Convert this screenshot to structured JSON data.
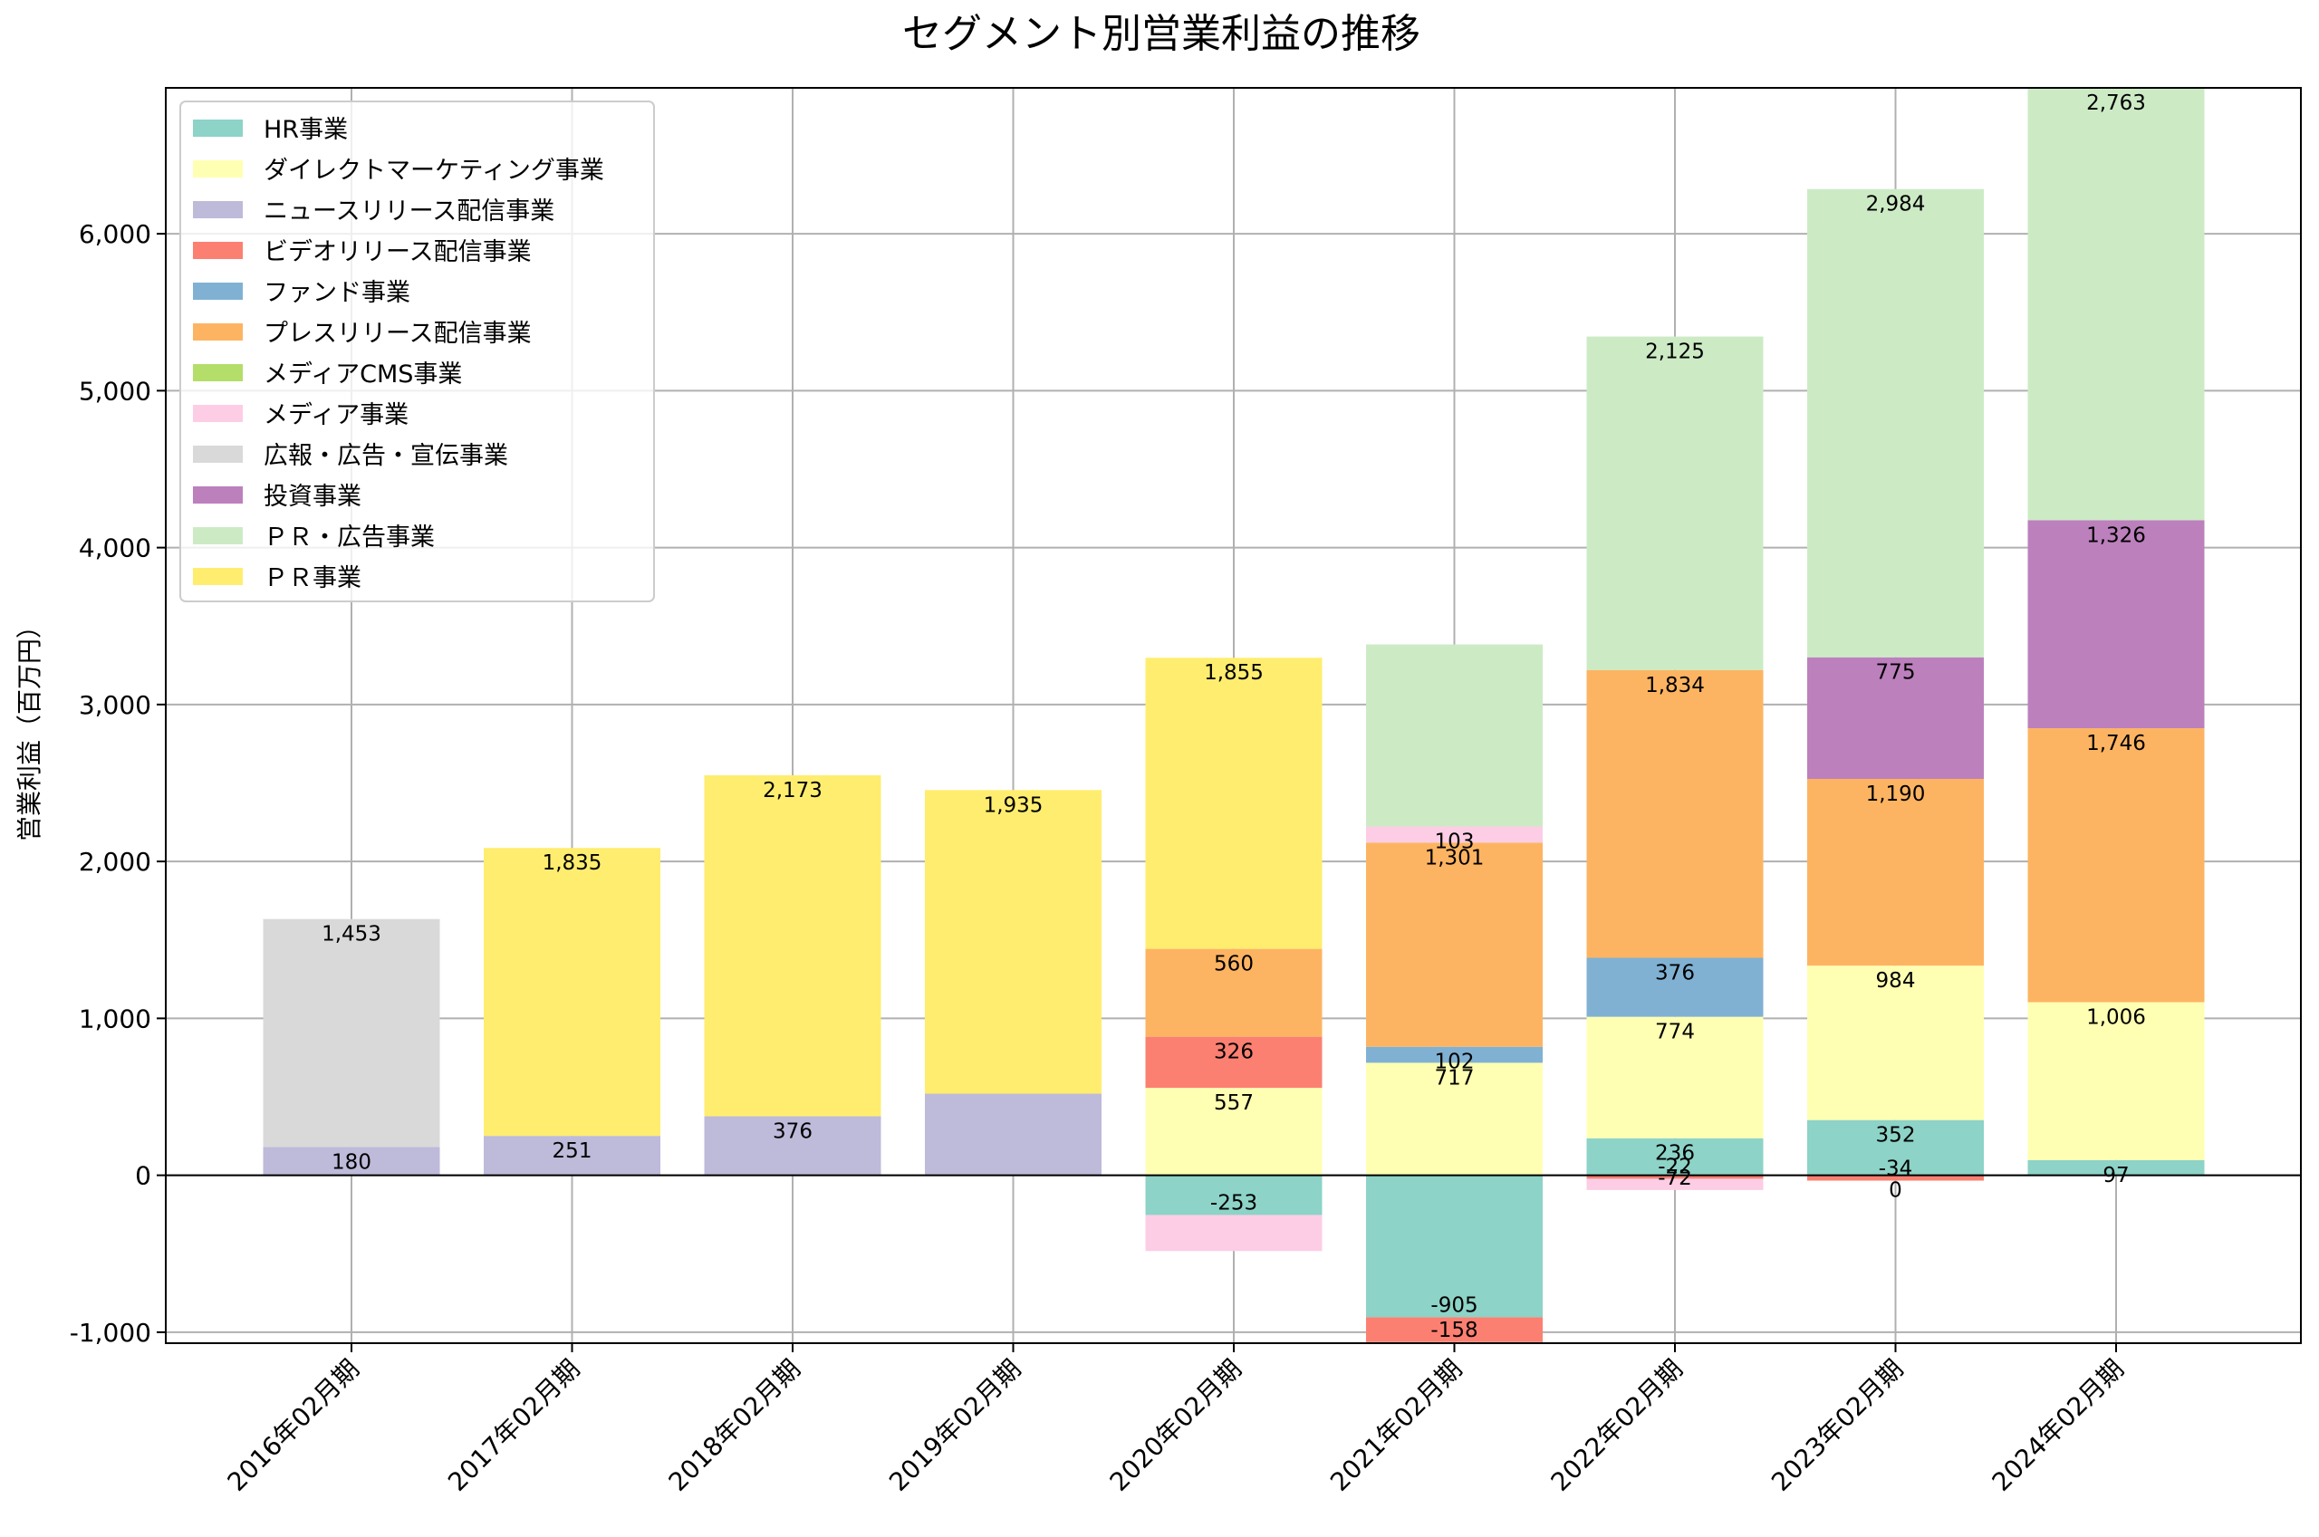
{
  "chart_data": {
    "type": "bar",
    "stacked": true,
    "title": "セグメント別営業利益の推移",
    "xlabel": "",
    "ylabel": "営業利益（百万円）",
    "ylim": [
      -1070,
      6930
    ],
    "yticks": [
      -1000,
      0,
      1000,
      2000,
      3000,
      4000,
      5000,
      6000
    ],
    "ytick_labels": [
      "-1,000",
      "0",
      "1,000",
      "2,000",
      "3,000",
      "4,000",
      "5,000",
      "6,000"
    ],
    "grid": true,
    "legend_position": "top-left",
    "categories": [
      "2016年02月期",
      "2017年02月期",
      "2018年02月期",
      "2019年02月期",
      "2020年02月期",
      "2021年02月期",
      "2022年02月期",
      "2023年02月期",
      "2024年02月期"
    ],
    "series": [
      {
        "name": "HR事業",
        "color": "#8dd3c7",
        "values": [
          null,
          null,
          null,
          null,
          -253,
          -905,
          236,
          352,
          97
        ]
      },
      {
        "name": "ダイレクトマーケティング事業",
        "color": "#ffffb3",
        "values": [
          null,
          null,
          null,
          null,
          557,
          717,
          774,
          984,
          1006
        ]
      },
      {
        "name": "ニュースリリース配信事業",
        "color": "#bebada",
        "values": [
          180,
          251,
          376,
          520,
          null,
          null,
          null,
          null,
          null
        ]
      },
      {
        "name": "ビデオリリース配信事業",
        "color": "#fb8072",
        "values": [
          null,
          null,
          null,
          null,
          326,
          -158,
          -22,
          -34,
          null
        ]
      },
      {
        "name": "ファンド事業",
        "color": "#80b1d3",
        "values": [
          null,
          null,
          null,
          null,
          null,
          102,
          376,
          null,
          null
        ]
      },
      {
        "name": "プレスリリース配信事業",
        "color": "#fdb462",
        "values": [
          null,
          null,
          null,
          null,
          560,
          1301,
          1834,
          1190,
          1746
        ]
      },
      {
        "name": "メディアCMS事業",
        "color": "#b3de69",
        "values": [
          null,
          null,
          null,
          null,
          null,
          null,
          null,
          null,
          null
        ]
      },
      {
        "name": "メディア事業",
        "color": "#fccde5",
        "values": [
          null,
          null,
          null,
          null,
          -230,
          103,
          -72,
          null,
          null
        ]
      },
      {
        "name": "広報・広告・宣伝事業",
        "color": "#d9d9d9",
        "values": [
          1453,
          null,
          null,
          null,
          null,
          null,
          null,
          null,
          null
        ]
      },
      {
        "name": "投資事業",
        "color": "#bc80bd",
        "values": [
          null,
          null,
          null,
          null,
          null,
          null,
          null,
          775,
          1326
        ]
      },
      {
        "name": "ＰＲ・広告事業",
        "color": "#ccebc5",
        "values": [
          null,
          null,
          null,
          null,
          null,
          1160,
          2125,
          2984,
          2763
        ]
      },
      {
        "name": "ＰＲ事業",
        "color": "#ffed6f",
        "values": [
          null,
          1835,
          2173,
          1935,
          1855,
          null,
          null,
          null,
          null
        ]
      }
    ],
    "data_labels": [
      {
        "category": 0,
        "series": 2,
        "text": "180"
      },
      {
        "category": 0,
        "series": 8,
        "text": "1,453"
      },
      {
        "category": 1,
        "series": 2,
        "text": "251"
      },
      {
        "category": 1,
        "series": 11,
        "text": "1,835"
      },
      {
        "category": 2,
        "series": 2,
        "text": "376"
      },
      {
        "category": 2,
        "series": 11,
        "text": "2,173"
      },
      {
        "category": 3,
        "series": 11,
        "text": "1,935"
      },
      {
        "category": 4,
        "series": 0,
        "text": "-253"
      },
      {
        "category": 4,
        "series": 1,
        "text": "557"
      },
      {
        "category": 4,
        "series": 3,
        "text": "326"
      },
      {
        "category": 4,
        "series": 5,
        "text": "560"
      },
      {
        "category": 4,
        "series": 11,
        "text": "1,855"
      },
      {
        "category": 5,
        "series": 0,
        "text": "-905"
      },
      {
        "category": 5,
        "series": 3,
        "text": "-158"
      },
      {
        "category": 5,
        "series": 1,
        "text": "717"
      },
      {
        "category": 5,
        "series": 4,
        "text": "102"
      },
      {
        "category": 5,
        "series": 5,
        "text": "1,301"
      },
      {
        "category": 5,
        "series": 7,
        "text": "103"
      },
      {
        "category": 6,
        "series": 0,
        "text": "236"
      },
      {
        "category": 6,
        "series": 3,
        "text": "-22"
      },
      {
        "category": 6,
        "series": 7,
        "text": "-72"
      },
      {
        "category": 6,
        "series": 1,
        "text": "774"
      },
      {
        "category": 6,
        "series": 4,
        "text": "376"
      },
      {
        "category": 6,
        "series": 5,
        "text": "1,834"
      },
      {
        "category": 6,
        "series": 10,
        "text": "2,125"
      },
      {
        "category": 7,
        "series": 0,
        "text": "352"
      },
      {
        "category": 7,
        "series": 3,
        "text": "-34"
      },
      {
        "category": 7,
        "series": 1,
        "text": "984"
      },
      {
        "category": 7,
        "series": 5,
        "text": "1,190"
      },
      {
        "category": 7,
        "series": 6,
        "text": "0"
      },
      {
        "category": 7,
        "series": 9,
        "text": "775"
      },
      {
        "category": 7,
        "series": 10,
        "text": "2,984"
      },
      {
        "category": 8,
        "series": 0,
        "text": "97"
      },
      {
        "category": 8,
        "series": 1,
        "text": "1,006"
      },
      {
        "category": 8,
        "series": 5,
        "text": "1,746"
      },
      {
        "category": 8,
        "series": 9,
        "text": "1,326"
      },
      {
        "category": 8,
        "series": 10,
        "text": "2,763"
      }
    ]
  }
}
